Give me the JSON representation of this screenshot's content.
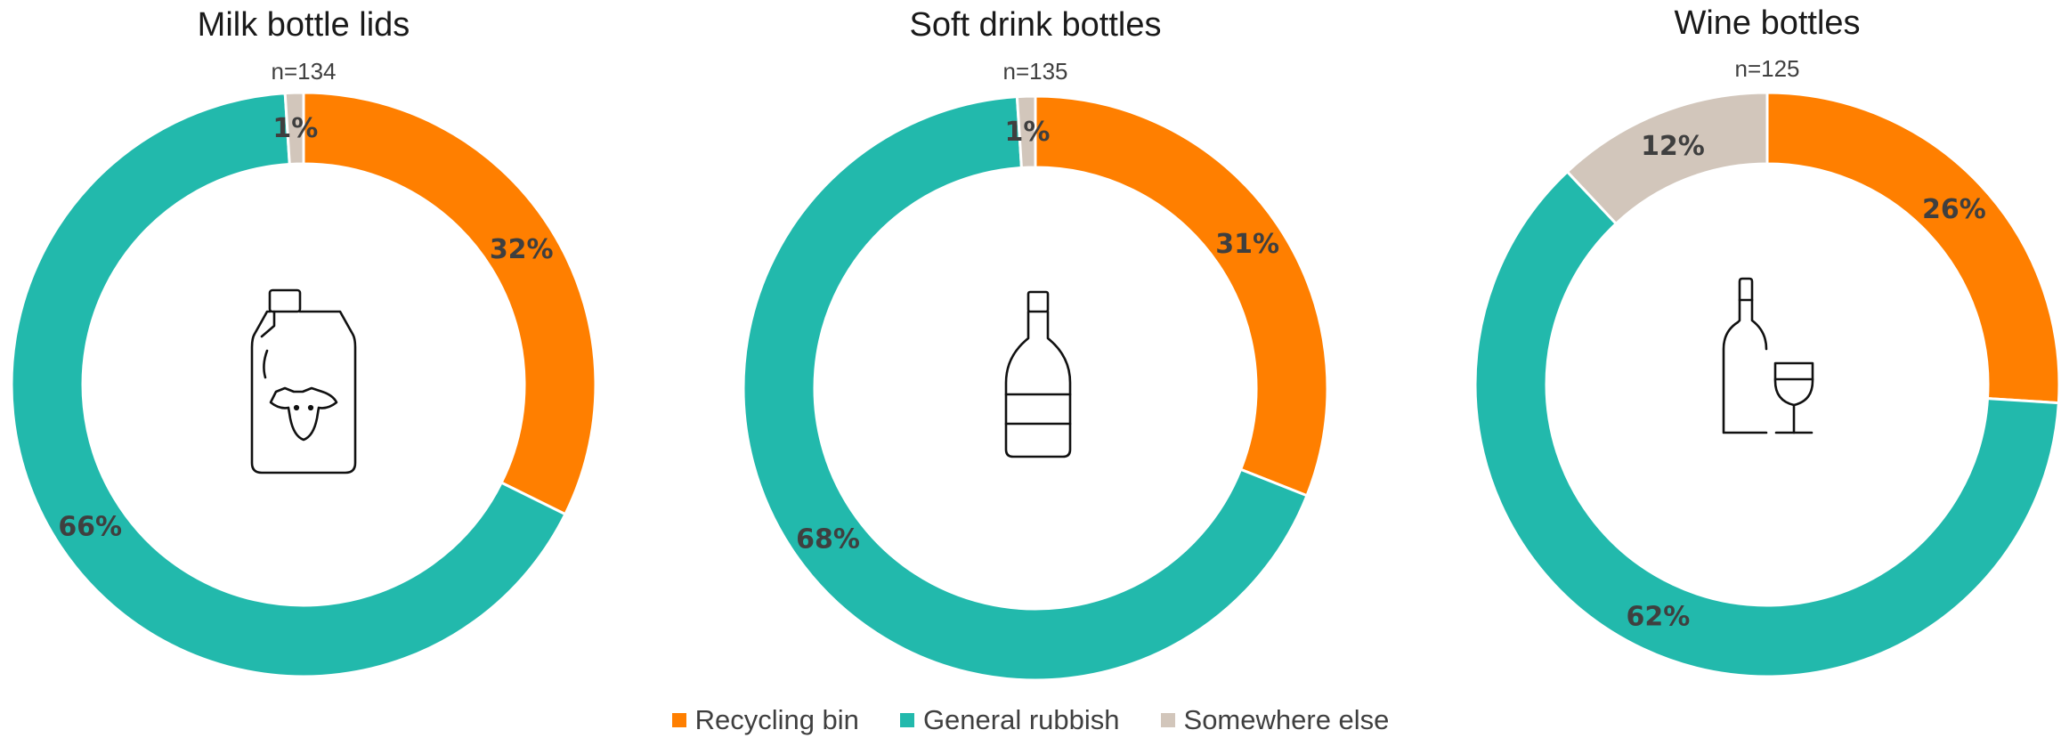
{
  "chart_data": [
    {
      "type": "pie",
      "title": "Milk bottle lids",
      "subtitle": "n=134",
      "icon": "milk-bottle-cow-icon",
      "categories": [
        "Recycling bin",
        "General rubbish",
        "Somewhere else"
      ],
      "values": [
        32,
        66,
        1
      ],
      "data_labels": [
        "32%",
        "66%",
        "1%"
      ]
    },
    {
      "type": "pie",
      "title": "Soft drink bottles",
      "subtitle": "n=135",
      "icon": "soft-drink-bottle-icon",
      "categories": [
        "Recycling bin",
        "General rubbish",
        "Somewhere else"
      ],
      "values": [
        31,
        68,
        1
      ],
      "data_labels": [
        "31%",
        "68%",
        "1%"
      ]
    },
    {
      "type": "pie",
      "title": "Wine bottles",
      "subtitle": "n=125",
      "icon": "wine-bottle-glass-icon",
      "categories": [
        "Recycling bin",
        "General rubbish",
        "Somewhere else"
      ],
      "values": [
        26,
        62,
        12
      ],
      "data_labels": [
        "26%",
        "62%",
        "12%"
      ]
    }
  ],
  "legend": {
    "items": [
      {
        "label": "Recycling bin",
        "color": "#FF7F00"
      },
      {
        "label": "General rubbish",
        "color": "#22B9AC"
      },
      {
        "label": "Somewhere else",
        "color": "#D2C6BB"
      }
    ],
    "placement": "bottom"
  },
  "colors": [
    "#FF7F00",
    "#22B9AC",
    "#D2C6BB"
  ]
}
